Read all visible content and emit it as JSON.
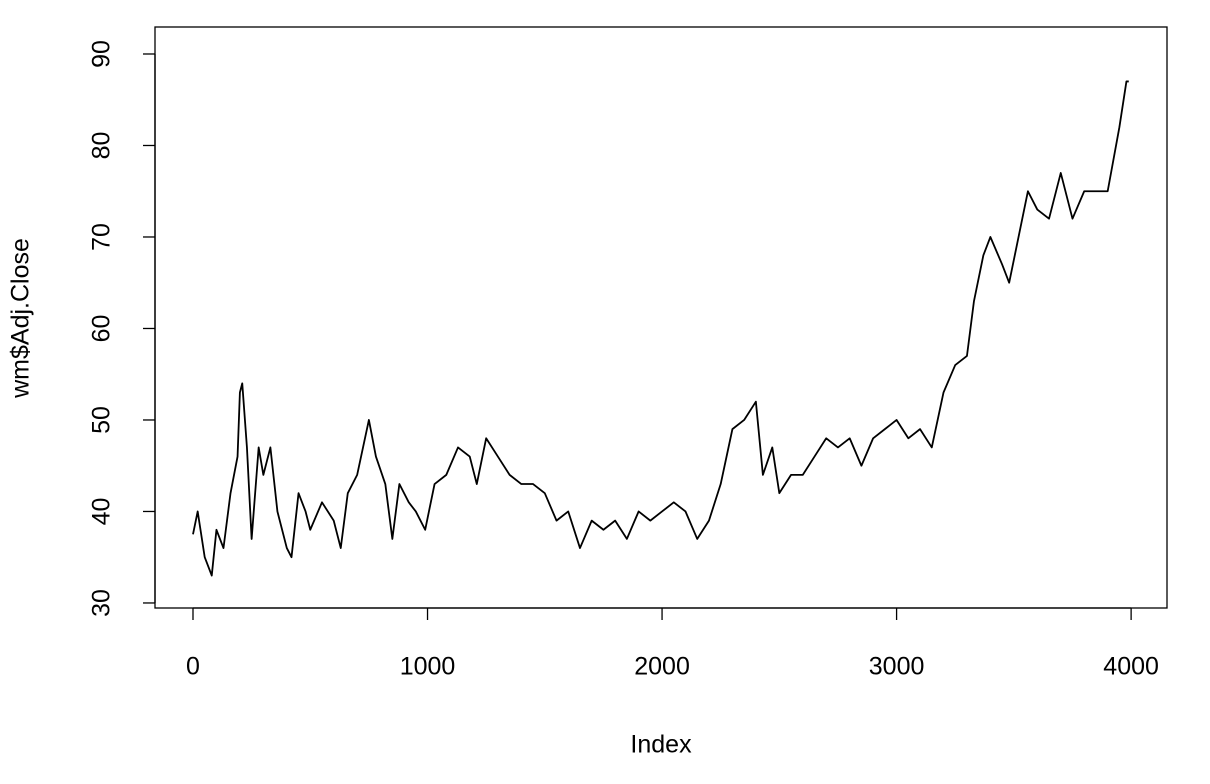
{
  "chart_data": {
    "type": "line",
    "x_label": "Index",
    "y_label": "wm$Adj.Close",
    "x": [
      0,
      20,
      50,
      80,
      100,
      130,
      160,
      190,
      200,
      210,
      230,
      250,
      280,
      300,
      330,
      360,
      400,
      420,
      450,
      480,
      500,
      550,
      600,
      630,
      660,
      700,
      750,
      780,
      820,
      850,
      880,
      920,
      950,
      990,
      1030,
      1080,
      1130,
      1180,
      1210,
      1250,
      1300,
      1350,
      1400,
      1450,
      1500,
      1550,
      1600,
      1650,
      1700,
      1750,
      1800,
      1850,
      1900,
      1950,
      2000,
      2050,
      2100,
      2150,
      2200,
      2250,
      2300,
      2350,
      2400,
      2430,
      2470,
      2500,
      2550,
      2600,
      2650,
      2700,
      2750,
      2800,
      2850,
      2900,
      2950,
      3000,
      3050,
      3100,
      3150,
      3200,
      3250,
      3300,
      3330,
      3370,
      3400,
      3450,
      3480,
      3520,
      3560,
      3600,
      3650,
      3700,
      3750,
      3800,
      3850,
      3900,
      3950,
      3980,
      3990
    ],
    "series": [
      {
        "name": "wm$Adj.Close",
        "color": "#000000",
        "values": [
          37.5,
          40,
          35,
          33,
          38,
          36,
          42,
          46,
          53,
          54,
          47,
          37,
          47,
          44,
          47,
          40,
          36,
          35,
          42,
          40,
          38,
          41,
          39,
          36,
          42,
          44,
          50,
          46,
          43,
          37,
          43,
          41,
          40,
          38,
          43,
          44,
          47,
          46,
          43,
          48,
          46,
          44,
          43,
          43,
          42,
          39,
          40,
          36,
          39,
          38,
          39,
          37,
          40,
          39,
          40,
          41,
          40,
          37,
          39,
          43,
          49,
          50,
          52,
          44,
          47,
          42,
          44,
          44,
          46,
          48,
          47,
          48,
          45,
          48,
          49,
          50,
          48,
          49,
          47,
          53,
          56,
          57,
          63,
          68,
          70,
          67,
          65,
          70,
          75,
          73,
          72,
          77,
          72,
          75,
          75,
          75,
          82,
          87,
          87
        ]
      }
    ],
    "xlim": [
      -162,
      4153
    ],
    "ylim": [
      29.45,
      92.95
    ],
    "xticks": [
      0,
      1000,
      2000,
      3000,
      4000
    ],
    "yticks": [
      30,
      40,
      50,
      60,
      70,
      80,
      90
    ]
  }
}
